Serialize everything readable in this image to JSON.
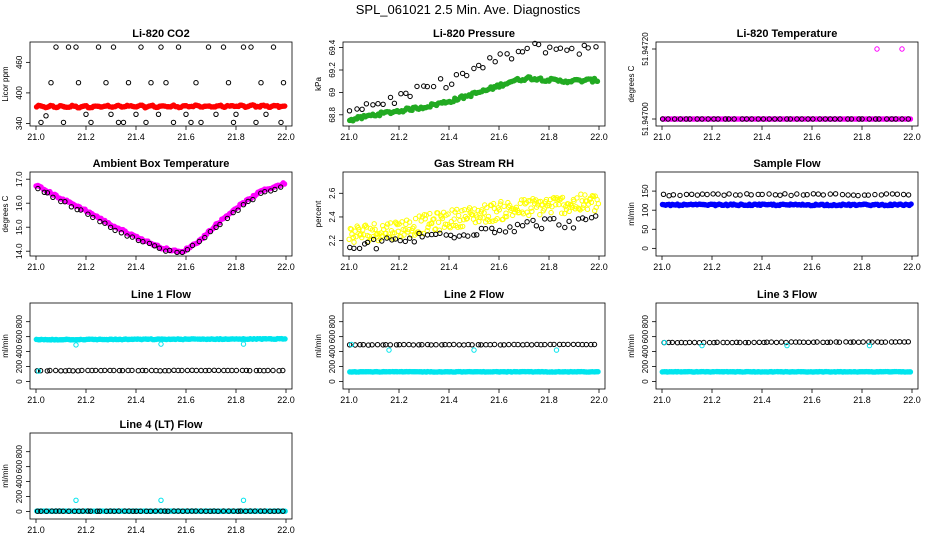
{
  "title": "SPL_061021  2.5 Min. Ave. Diagnostics",
  "colors": {
    "black": "#000000",
    "red": "#ff0000",
    "green": "#22aa22",
    "magenta": "#ff00ff",
    "yellow": "#ffff00",
    "blue": "#0000ff",
    "cyan": "#00e5ee"
  },
  "chart_data": [
    {
      "type": "scatter",
      "title": "Li-820 CO2",
      "ylabel": "Licor ppm",
      "xlim": [
        21.0,
        22.0
      ],
      "ylim": [
        335,
        500
      ],
      "xticks": [
        "21.0",
        "21.2",
        "21.4",
        "21.6",
        "21.8",
        "22.0"
      ],
      "yticks": [
        340,
        400,
        460
      ],
      "series": [
        {
          "name": "main",
          "color": "red",
          "filled": true,
          "y0": 373,
          "y1": 374,
          "amp": 1.5,
          "noise": 1.2,
          "n": 140
        },
        {
          "name": "aux",
          "color": "black",
          "filled": false,
          "points": [
            [
              21.02,
              342
            ],
            [
              21.04,
              355
            ],
            [
              21.06,
              420
            ],
            [
              21.08,
              490
            ],
            [
              21.11,
              342
            ],
            [
              21.13,
              490
            ],
            [
              21.16,
              490
            ],
            [
              21.17,
              420
            ],
            [
              21.2,
              358
            ],
            [
              21.22,
              342
            ],
            [
              21.25,
              490
            ],
            [
              21.28,
              420
            ],
            [
              21.3,
              358
            ],
            [
              21.31,
              490
            ],
            [
              21.33,
              342
            ],
            [
              21.35,
              342
            ],
            [
              21.37,
              420
            ],
            [
              21.4,
              358
            ],
            [
              21.42,
              490
            ],
            [
              21.44,
              342
            ],
            [
              21.46,
              420
            ],
            [
              21.49,
              358
            ],
            [
              21.5,
              490
            ],
            [
              21.52,
              420
            ],
            [
              21.55,
              342
            ],
            [
              21.57,
              490
            ],
            [
              21.6,
              358
            ],
            [
              21.62,
              342
            ],
            [
              21.64,
              420
            ],
            [
              21.66,
              342
            ],
            [
              21.69,
              490
            ],
            [
              21.72,
              358
            ],
            [
              21.75,
              490
            ],
            [
              21.77,
              420
            ],
            [
              21.79,
              342
            ],
            [
              21.8,
              358
            ],
            [
              21.83,
              490
            ],
            [
              21.86,
              490
            ],
            [
              21.88,
              342
            ],
            [
              21.9,
              420
            ],
            [
              21.92,
              358
            ],
            [
              21.95,
              490
            ],
            [
              21.98,
              342
            ],
            [
              21.99,
              420
            ]
          ]
        }
      ]
    },
    {
      "type": "scatter",
      "title": "Li-820 Pressure",
      "ylabel": "kPa",
      "xlim": [
        21.0,
        22.0
      ],
      "ylim": [
        68.7,
        69.45
      ],
      "xticks": [
        "21.0",
        "21.2",
        "21.4",
        "21.6",
        "21.8",
        "22.0"
      ],
      "yticks": [
        68.8,
        69.0,
        69.2,
        69.4
      ],
      "series": [
        {
          "name": "main",
          "color": "green",
          "filled": true,
          "knots": [
            [
              21.0,
              68.75
            ],
            [
              21.1,
              68.8
            ],
            [
              21.3,
              68.87
            ],
            [
              21.4,
              68.92
            ],
            [
              21.55,
              69.02
            ],
            [
              21.65,
              69.1
            ],
            [
              21.72,
              69.13
            ],
            [
              21.85,
              69.1
            ],
            [
              22.0,
              69.11
            ]
          ],
          "noise": 0.015,
          "n": 140
        },
        {
          "name": "aux",
          "color": "black",
          "filled": false,
          "knots": [
            [
              21.0,
              68.85
            ],
            [
              21.2,
              68.95
            ],
            [
              21.4,
              69.1
            ],
            [
              21.6,
              69.3
            ],
            [
              21.75,
              69.4
            ],
            [
              22.0,
              69.38
            ]
          ],
          "noise": 0.05,
          "n": 45
        }
      ]
    },
    {
      "type": "scatter",
      "title": "Li-820 Temperature",
      "ylabel": "degrees C",
      "xlim": [
        21.0,
        22.0
      ],
      "ylim": [
        51.94698,
        51.94722
      ],
      "xticks": [
        "21.0",
        "21.2",
        "21.4",
        "21.6",
        "21.8",
        "22.0"
      ],
      "yticks": [
        51.947,
        51.9472
      ],
      "series": [
        {
          "name": "main",
          "color": "magenta",
          "filled": true,
          "knots": [
            [
              21.0,
              51.947
            ],
            [
              22.0,
              51.947
            ]
          ],
          "noise": 0,
          "n": 150
        },
        {
          "name": "aux",
          "color": "magenta",
          "filled": false,
          "points": [
            [
              21.86,
              51.9472
            ],
            [
              21.96,
              51.9472
            ]
          ]
        },
        {
          "name": "black",
          "color": "black",
          "filled": false,
          "knots": [
            [
              21.0,
              51.947
            ],
            [
              22.0,
              51.947
            ]
          ],
          "noise": 0,
          "n": 45
        }
      ]
    },
    {
      "type": "scatter",
      "title": "Ambient Box Temperature",
      "ylabel": "degrees C",
      "xlim": [
        21.0,
        22.0
      ],
      "ylim": [
        13.8,
        17.3
      ],
      "xticks": [
        "21.0",
        "21.2",
        "21.4",
        "21.6",
        "21.8",
        "22.0"
      ],
      "yticks": [
        14.0,
        15.0,
        16.0,
        17.0
      ],
      "series": [
        {
          "name": "main",
          "color": "magenta",
          "filled": true,
          "knots": [
            [
              21.0,
              16.75
            ],
            [
              21.1,
              16.2
            ],
            [
              21.2,
              15.7
            ],
            [
              21.3,
              15.1
            ],
            [
              21.4,
              14.6
            ],
            [
              21.5,
              14.15
            ],
            [
              21.58,
              13.95
            ],
            [
              21.65,
              14.4
            ],
            [
              21.72,
              15.1
            ],
            [
              21.8,
              15.8
            ],
            [
              21.9,
              16.5
            ],
            [
              22.0,
              16.85
            ]
          ],
          "noise": 0.04,
          "n": 150
        },
        {
          "name": "aux",
          "color": "black",
          "filled": false,
          "knots": [
            [
              21.0,
              16.65
            ],
            [
              21.1,
              16.1
            ],
            [
              21.2,
              15.6
            ],
            [
              21.3,
              15.0
            ],
            [
              21.4,
              14.5
            ],
            [
              21.5,
              14.1
            ],
            [
              21.58,
              13.9
            ],
            [
              21.65,
              14.35
            ],
            [
              21.72,
              15.0
            ],
            [
              21.8,
              15.7
            ],
            [
              21.9,
              16.4
            ],
            [
              22.0,
              16.75
            ]
          ],
          "noise": 0.05,
          "n": 45
        }
      ]
    },
    {
      "type": "scatter",
      "title": "Gas Stream RH",
      "ylabel": "percent",
      "xlim": [
        21.0,
        22.0
      ],
      "ylim": [
        2.07,
        2.78
      ],
      "xticks": [
        "21.0",
        "21.2",
        "21.4",
        "21.6",
        "21.8",
        "22.0"
      ],
      "yticks": [
        2.2,
        2.4,
        2.6
      ],
      "series": [
        {
          "name": "main",
          "color": "yellow",
          "filled": false,
          "knots": [
            [
              21.0,
              2.25
            ],
            [
              21.2,
              2.3
            ],
            [
              21.4,
              2.38
            ],
            [
              21.6,
              2.45
            ],
            [
              21.8,
              2.5
            ],
            [
              22.0,
              2.52
            ]
          ],
          "noise": 0.08,
          "n": 260
        },
        {
          "name": "aux",
          "color": "black",
          "filled": false,
          "knots": [
            [
              21.0,
              2.13
            ],
            [
              21.2,
              2.2
            ],
            [
              21.4,
              2.26
            ],
            [
              21.6,
              2.31
            ],
            [
              21.8,
              2.35
            ],
            [
              22.0,
              2.36
            ]
          ],
          "noise": 0.05,
          "n": 55
        }
      ]
    },
    {
      "type": "scatter",
      "title": "Sample Flow",
      "ylabel": "ml/min",
      "xlim": [
        21.0,
        22.0
      ],
      "ylim": [
        -20,
        200
      ],
      "xticks": [
        "21.0",
        "21.2",
        "21.4",
        "21.6",
        "21.8",
        "22.0"
      ],
      "yticks": [
        0,
        50,
        100,
        150
      ],
      "series": [
        {
          "name": "main",
          "color": "blue",
          "filled": true,
          "knots": [
            [
              21.0,
              114
            ],
            [
              22.0,
              114
            ]
          ],
          "noise": 2,
          "n": 150
        },
        {
          "name": "aux",
          "color": "black",
          "filled": false,
          "knots": [
            [
              21.0,
              140
            ],
            [
              22.0,
              141
            ]
          ],
          "noise": 2.5,
          "n": 45
        }
      ]
    },
    {
      "type": "scatter",
      "title": "Line 1 Flow",
      "ylabel": "ml/min",
      "xlim": [
        21.0,
        22.0
      ],
      "ylim": [
        -100,
        1050
      ],
      "xticks": [
        "21.0",
        "21.2",
        "21.4",
        "21.6",
        "21.8",
        "22.0"
      ],
      "yticks": [
        0,
        200,
        400,
        600,
        800
      ],
      "series": [
        {
          "name": "main",
          "color": "cyan",
          "filled": true,
          "knots": [
            [
              21.0,
              560
            ],
            [
              22.0,
              570
            ]
          ],
          "noise": 5,
          "n": 140
        },
        {
          "name": "aux",
          "color": "black",
          "filled": false,
          "knots": [
            [
              21.0,
              145
            ],
            [
              22.0,
              148
            ]
          ],
          "noise": 3,
          "n": 55
        },
        {
          "name": "cyan-low",
          "color": "cyan",
          "filled": false,
          "points": [
            [
              21.01,
              140
            ],
            [
              21.16,
              490
            ],
            [
              21.5,
              500
            ],
            [
              21.83,
              500
            ]
          ]
        }
      ]
    },
    {
      "type": "scatter",
      "title": "Line 2 Flow",
      "ylabel": "ml/min",
      "xlim": [
        21.0,
        22.0
      ],
      "ylim": [
        -100,
        1050
      ],
      "xticks": [
        "21.0",
        "21.2",
        "21.4",
        "21.6",
        "21.8",
        "22.0"
      ],
      "yticks": [
        0,
        200,
        400,
        600,
        800
      ],
      "series": [
        {
          "name": "main",
          "color": "cyan",
          "filled": true,
          "knots": [
            [
              21.0,
              130
            ],
            [
              22.0,
              130
            ]
          ],
          "noise": 3,
          "n": 140
        },
        {
          "name": "aux",
          "color": "black",
          "filled": false,
          "knots": [
            [
              21.0,
              490
            ],
            [
              22.0,
              495
            ]
          ],
          "noise": 3,
          "n": 55
        },
        {
          "name": "cyan-high",
          "color": "cyan",
          "filled": false,
          "points": [
            [
              21.01,
              495
            ],
            [
              21.16,
              420
            ],
            [
              21.5,
              420
            ],
            [
              21.83,
              420
            ]
          ]
        }
      ]
    },
    {
      "type": "scatter",
      "title": "Line 3 Flow",
      "ylabel": "ml/min",
      "xlim": [
        21.0,
        22.0
      ],
      "ylim": [
        -100,
        1050
      ],
      "xticks": [
        "21.0",
        "21.2",
        "21.4",
        "21.6",
        "21.8",
        "22.0"
      ],
      "yticks": [
        0,
        200,
        400,
        600,
        800
      ],
      "series": [
        {
          "name": "main",
          "color": "cyan",
          "filled": true,
          "knots": [
            [
              21.0,
              130
            ],
            [
              22.0,
              130
            ]
          ],
          "noise": 3,
          "n": 140
        },
        {
          "name": "aux",
          "color": "black",
          "filled": false,
          "knots": [
            [
              21.0,
              520
            ],
            [
              22.0,
              530
            ]
          ],
          "noise": 3,
          "n": 55
        },
        {
          "name": "cyan-high",
          "color": "cyan",
          "filled": false,
          "points": [
            [
              21.01,
              520
            ],
            [
              21.16,
              480
            ],
            [
              21.5,
              480
            ],
            [
              21.83,
              480
            ]
          ]
        }
      ]
    },
    {
      "type": "scatter",
      "title": "Line 4 (LT) Flow",
      "ylabel": "ml/min",
      "xlim": [
        21.0,
        22.0
      ],
      "ylim": [
        -100,
        1050
      ],
      "xticks": [
        "21.0",
        "21.2",
        "21.4",
        "21.6",
        "21.8",
        "22.0"
      ],
      "yticks": [
        0,
        200,
        400,
        600,
        800
      ],
      "series": [
        {
          "name": "main",
          "color": "cyan",
          "filled": true,
          "knots": [
            [
              21.0,
              5
            ],
            [
              22.0,
              5
            ]
          ],
          "noise": 1,
          "n": 140
        },
        {
          "name": "aux",
          "color": "black",
          "filled": false,
          "knots": [
            [
              21.0,
              5
            ],
            [
              22.0,
              5
            ]
          ],
          "noise": 1,
          "n": 55
        },
        {
          "name": "cyan-high",
          "color": "cyan",
          "filled": false,
          "points": [
            [
              21.16,
              150
            ],
            [
              21.5,
              150
            ],
            [
              21.83,
              150
            ]
          ]
        }
      ]
    }
  ]
}
